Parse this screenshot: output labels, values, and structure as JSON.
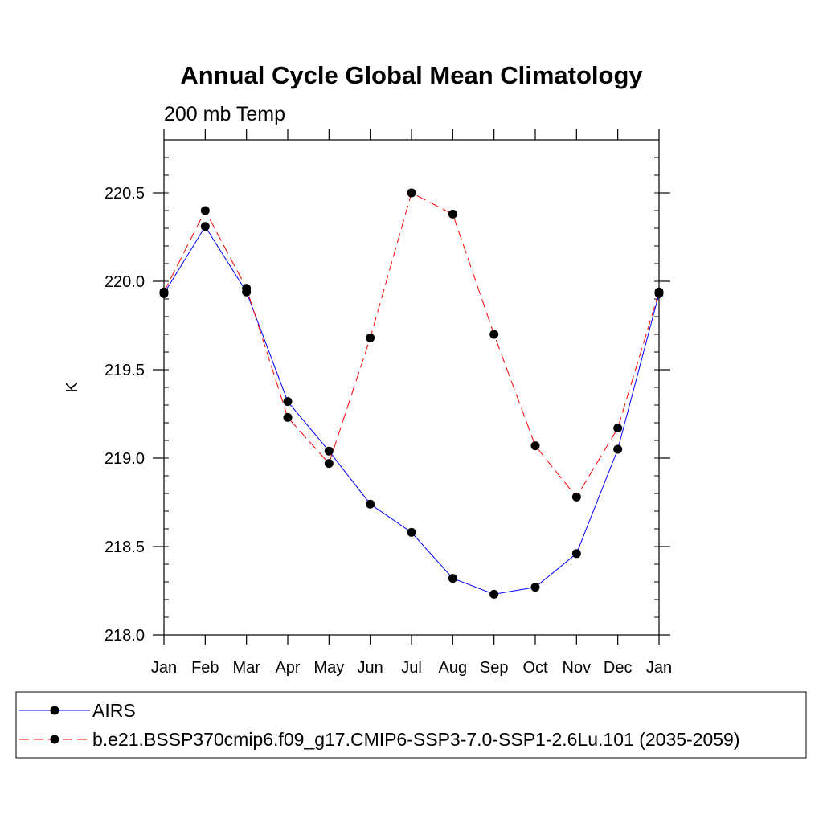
{
  "chart_data": {
    "type": "line",
    "title": "Annual Cycle Global Mean Climatology",
    "subtitle": "200 mb Temp",
    "xlabel": "",
    "ylabel": "K",
    "categories": [
      "Jan",
      "Feb",
      "Mar",
      "Apr",
      "May",
      "Jun",
      "Jul",
      "Aug",
      "Sep",
      "Oct",
      "Nov",
      "Dec",
      "Jan"
    ],
    "ylim": [
      218.0,
      220.8
    ],
    "yticks": [
      "218.0",
      "218.5",
      "219.0",
      "219.5",
      "220.0",
      "220.5"
    ],
    "grid": false,
    "legend_position": "bottom",
    "series": [
      {
        "name": "AIRS",
        "color": "#0000ff",
        "dash": "solid",
        "values": [
          219.93,
          220.31,
          219.94,
          219.32,
          219.04,
          218.74,
          218.58,
          218.32,
          218.23,
          218.27,
          218.46,
          219.05,
          219.93
        ]
      },
      {
        "name": "b.e21.BSSP370cmip6.f09_g17.CMIP6-SSP3-7.0-SSP1-2.6Lu.101 (2035-2059)",
        "color": "#ff0000",
        "dash": "dashed",
        "values": [
          219.94,
          220.4,
          219.96,
          219.23,
          218.97,
          219.68,
          220.5,
          220.38,
          219.7,
          219.07,
          218.78,
          219.17,
          219.94
        ]
      }
    ]
  }
}
